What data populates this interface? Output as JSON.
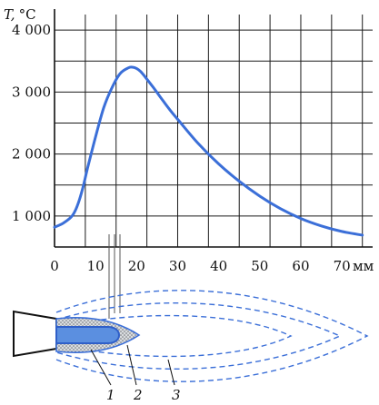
{
  "chart_data": {
    "type": "line",
    "ylabel_var": "T,",
    "ylabel_unit": "°C",
    "x_unit": "мм",
    "y_ticks": [
      {
        "value": 1000,
        "label": "1 000"
      },
      {
        "value": 2000,
        "label": "2 000"
      },
      {
        "value": 3000,
        "label": "3 000"
      },
      {
        "value": 4000,
        "label": "4 000"
      }
    ],
    "x_ticks": [
      {
        "value": 0,
        "label": "0"
      },
      {
        "value": 10,
        "label": "10"
      },
      {
        "value": 20,
        "label": "20"
      },
      {
        "value": 30,
        "label": "30"
      },
      {
        "value": 40,
        "label": "40"
      },
      {
        "value": 50,
        "label": "50"
      },
      {
        "value": 60,
        "label": "60"
      },
      {
        "value": 70,
        "label": "70"
      }
    ],
    "xlim": [
      0,
      77.5
    ],
    "ylim": [
      500,
      4250
    ],
    "grid": true,
    "series_color": "#3b6fd8",
    "series": [
      {
        "x": [
          0,
          2,
          4,
          5,
          6,
          7,
          8,
          10,
          12,
          14,
          16,
          18,
          19,
          20,
          21,
          22,
          24,
          26,
          28,
          30,
          35,
          40,
          45,
          50,
          55,
          60,
          65,
          70,
          75
        ],
        "y": [
          820,
          880,
          980,
          1080,
          1250,
          1480,
          1760,
          2280,
          2750,
          3070,
          3300,
          3390,
          3400,
          3380,
          3330,
          3250,
          3080,
          2900,
          2720,
          2560,
          2170,
          1840,
          1560,
          1320,
          1120,
          960,
          840,
          750,
          690
        ]
      }
    ]
  },
  "diagram": {
    "callouts": [
      "1",
      "2",
      "3"
    ]
  }
}
